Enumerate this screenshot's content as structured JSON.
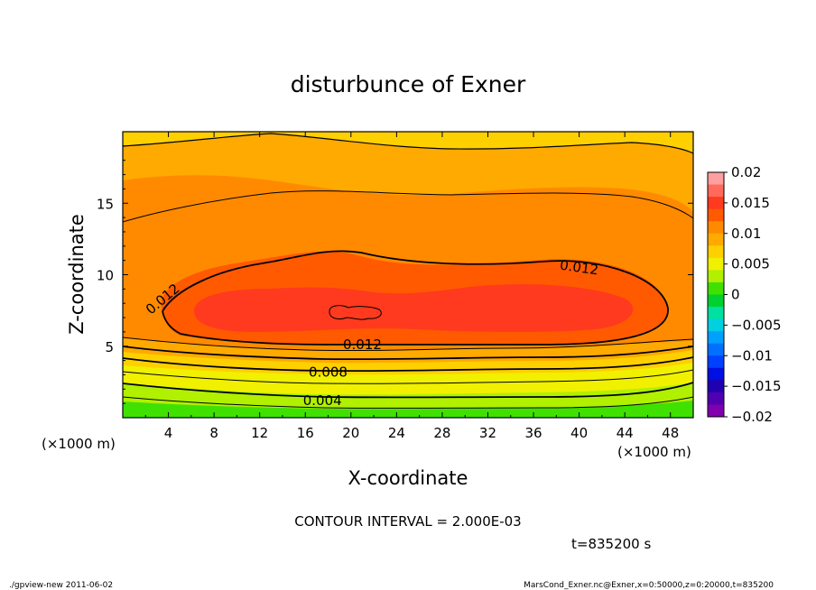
{
  "chart_data": {
    "type": "contour",
    "title": "disturbunce of Exner",
    "xlabel": "X-coordinate",
    "ylabel": "Z-coordinate",
    "x_unit": "(×1000 m)",
    "z_unit": "(×1000 m)",
    "xlim": [
      0,
      50
    ],
    "zlim": [
      0,
      20
    ],
    "x_ticks": [
      4,
      8,
      12,
      16,
      20,
      24,
      28,
      32,
      36,
      40,
      44,
      48
    ],
    "z_ticks": [
      5,
      10,
      15
    ],
    "contour_interval_text": "CONTOUR INTERVAL = 2.000E-03",
    "time_text": "t=835200 s",
    "contour_labels": [
      {
        "text": "0.012",
        "x": 3.5,
        "z": 8.3
      },
      {
        "text": "0.012",
        "x": 40,
        "z": 10.5
      },
      {
        "text": "0.012",
        "x": 21,
        "z": 5.1
      },
      {
        "text": "0.008",
        "x": 18,
        "z": 3.2
      },
      {
        "text": "0.004",
        "x": 17.5,
        "z": 1.2
      }
    ],
    "colorbar": {
      "ticks": [
        "0.02",
        "0.015",
        "0.01",
        "0.005",
        "0",
        "−0.005",
        "−0.01",
        "−0.015",
        "−0.02"
      ],
      "levels": [
        0.02,
        0.018,
        0.016,
        0.014,
        0.012,
        0.01,
        0.008,
        0.006,
        0.004,
        0.002,
        0.0,
        -0.002,
        -0.004,
        -0.006,
        -0.008,
        -0.01,
        -0.012,
        -0.014,
        -0.016,
        -0.018,
        -0.02
      ],
      "colors": [
        "#ff9f9f",
        "#ff6a5a",
        "#ff3a1e",
        "#ff5a00",
        "#ff8a00",
        "#ffaa00",
        "#ffd000",
        "#f0f000",
        "#b0f000",
        "#40e000",
        "#00d030",
        "#00e0a0",
        "#00d0e0",
        "#00a0ff",
        "#0070ff",
        "#0040ff",
        "#0010e0",
        "#2000b0",
        "#5000b0",
        "#8000b0"
      ]
    },
    "field_levels": [
      {
        "level": 0.002,
        "color": "#40e000"
      },
      {
        "level": 0.004,
        "color": "#b0f000"
      },
      {
        "level": 0.006,
        "color": "#f0f000"
      },
      {
        "level": 0.008,
        "color": "#ffd000"
      },
      {
        "level": 0.01,
        "color": "#ffaa00"
      },
      {
        "level": 0.012,
        "color": "#ff8a00"
      },
      {
        "level": 0.014,
        "color": "#ff5a00"
      },
      {
        "level": 0.016,
        "color": "#ff3a1e"
      }
    ]
  },
  "footer": {
    "left": "./gpview-new   2011-06-02",
    "right": "MarsCond_Exner.nc@Exner,x=0:50000,z=0:20000,t=835200"
  }
}
